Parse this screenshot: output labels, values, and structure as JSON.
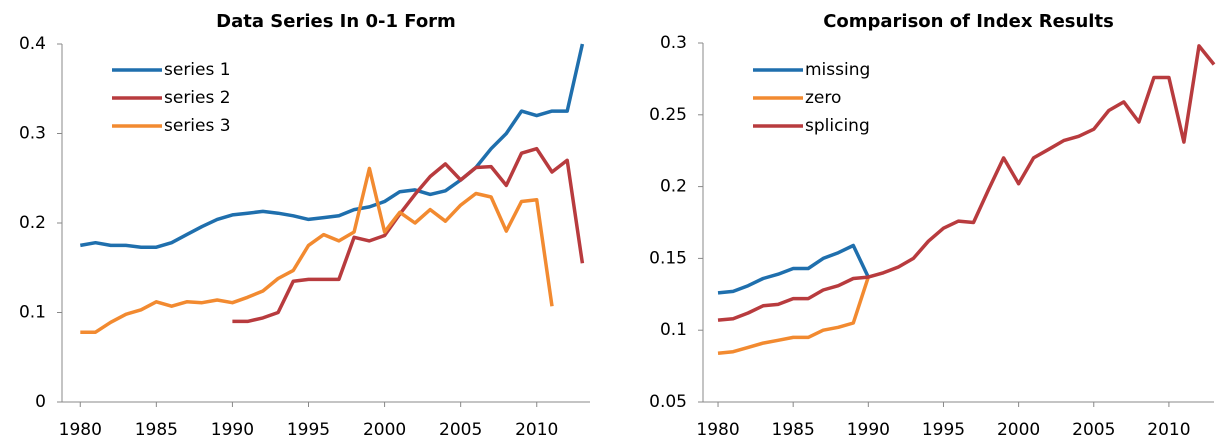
{
  "chart_data": [
    {
      "type": "line",
      "title": "Data Series In  0-1 Form",
      "x": [
        1980,
        1981,
        1982,
        1983,
        1984,
        1985,
        1986,
        1987,
        1988,
        1989,
        1990,
        1991,
        1992,
        1993,
        1994,
        1995,
        1996,
        1997,
        1998,
        1999,
        2000,
        2001,
        2002,
        2003,
        2004,
        2005,
        2006,
        2007,
        2008,
        2009,
        2010,
        2011,
        2012,
        2013
      ],
      "series": [
        {
          "name": "series 1",
          "color": "#1f6fad",
          "values": [
            0.175,
            0.178,
            0.175,
            0.175,
            0.173,
            0.173,
            0.178,
            0.187,
            0.196,
            0.204,
            0.209,
            0.211,
            0.213,
            0.211,
            0.208,
            0.204,
            0.206,
            0.208,
            0.215,
            0.218,
            0.224,
            0.235,
            0.237,
            0.232,
            0.236,
            0.248,
            0.262,
            0.283,
            0.3,
            0.325,
            0.32,
            0.325,
            0.325,
            0.4
          ]
        },
        {
          "name": "series 2",
          "color": "#b83b3e",
          "values": [
            null,
            null,
            null,
            null,
            null,
            null,
            null,
            null,
            null,
            null,
            0.09,
            0.09,
            0.094,
            0.1,
            0.135,
            0.137,
            0.137,
            0.137,
            0.184,
            0.18,
            0.186,
            0.21,
            0.232,
            0.252,
            0.266,
            0.248,
            0.262,
            0.263,
            0.242,
            0.278,
            0.283,
            0.257,
            0.27,
            0.155
          ]
        },
        {
          "name": "series 3",
          "color": "#f28a30",
          "values": [
            0.078,
            0.078,
            0.089,
            0.098,
            0.103,
            0.112,
            0.107,
            0.112,
            0.111,
            0.114,
            0.111,
            0.117,
            0.124,
            0.138,
            0.147,
            0.175,
            0.187,
            0.18,
            0.19,
            0.261,
            0.19,
            0.212,
            0.2,
            0.215,
            0.202,
            0.22,
            0.233,
            0.229,
            0.191,
            0.224,
            0.226,
            0.107,
            null,
            null
          ]
        }
      ],
      "xlim": [
        1978.8,
        2013.5
      ],
      "xticks": [
        1980,
        1985,
        1990,
        1995,
        2000,
        2005,
        2010
      ],
      "ylim": [
        0,
        0.4
      ],
      "yticks": [
        0,
        0.1,
        0.2,
        0.3,
        0.4
      ],
      "grid": false,
      "legend": "upper left"
    },
    {
      "type": "line",
      "title": "Comparison of Index Results",
      "x": [
        1980,
        1981,
        1982,
        1983,
        1984,
        1985,
        1986,
        1987,
        1988,
        1989,
        1990,
        1991,
        1992,
        1993,
        1994,
        1995,
        1996,
        1997,
        1998,
        1999,
        2000,
        2001,
        2002,
        2003,
        2004,
        2005,
        2006,
        2007,
        2008,
        2009,
        2010,
        2011,
        2012,
        2013
      ],
      "series": [
        {
          "name": "missing",
          "color": "#1f6fad",
          "values": [
            0.126,
            0.127,
            0.131,
            0.136,
            0.139,
            0.143,
            0.143,
            0.15,
            0.154,
            0.159,
            0.137,
            null,
            null,
            null,
            null,
            null,
            null,
            null,
            null,
            null,
            null,
            null,
            null,
            null,
            null,
            null,
            null,
            null,
            null,
            null,
            null,
            null,
            null,
            null
          ]
        },
        {
          "name": "zero",
          "color": "#f28a30",
          "values": [
            0.084,
            0.085,
            0.088,
            0.091,
            0.093,
            0.095,
            0.095,
            0.1,
            0.102,
            0.105,
            0.137,
            null,
            null,
            null,
            null,
            null,
            null,
            null,
            null,
            null,
            null,
            null,
            null,
            null,
            null,
            null,
            null,
            null,
            null,
            null,
            null,
            null,
            null,
            null
          ]
        },
        {
          "name": "splicing",
          "color": "#b83b3e",
          "values": [
            0.107,
            0.108,
            0.112,
            0.117,
            0.118,
            0.122,
            0.122,
            0.128,
            0.131,
            0.136,
            0.137,
            0.14,
            0.144,
            0.15,
            0.162,
            0.171,
            0.176,
            0.175,
            0.198,
            0.22,
            0.202,
            0.22,
            0.226,
            0.232,
            0.235,
            0.24,
            0.253,
            0.259,
            0.245,
            0.276,
            0.276,
            0.231,
            0.298,
            0.285
          ]
        }
      ],
      "xlim": [
        1979,
        2013
      ],
      "xticks": [
        1980,
        1985,
        1990,
        1995,
        2000,
        2005,
        2010
      ],
      "ylim": [
        0.05,
        0.3
      ],
      "yticks": [
        0.05,
        0.1,
        0.15,
        0.2,
        0.25,
        0.3
      ],
      "grid": false,
      "legend": "upper left"
    }
  ]
}
